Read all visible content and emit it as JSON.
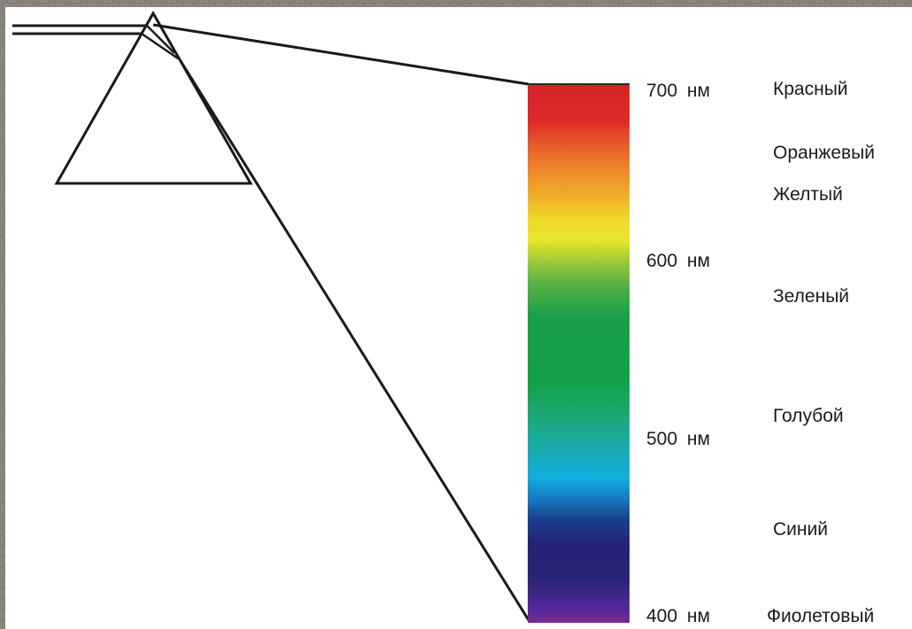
{
  "wavelength_labels": {
    "w700": "700 нм",
    "w600": "600 нм",
    "w500": "500 нм",
    "w400": "400 нм"
  },
  "color_names": {
    "red": "Красный",
    "orange": "Оранжевый",
    "yellow": "Желтый",
    "green": "Зеленый",
    "cyan": "Голубой",
    "blue": "Синий",
    "violet": "Фиолетовый"
  },
  "spectrum_colors": {
    "red": "#e02a2a",
    "orange": "#f0922a",
    "yellow": "#f0e02a",
    "green": "#12a04c",
    "cyan": "#12b0d8",
    "blue": "#24247a",
    "violet": "#6a2a8a"
  },
  "colors": {
    "background": "#ffffff",
    "frame": "#8a857c",
    "line": "#1a1a1a"
  }
}
